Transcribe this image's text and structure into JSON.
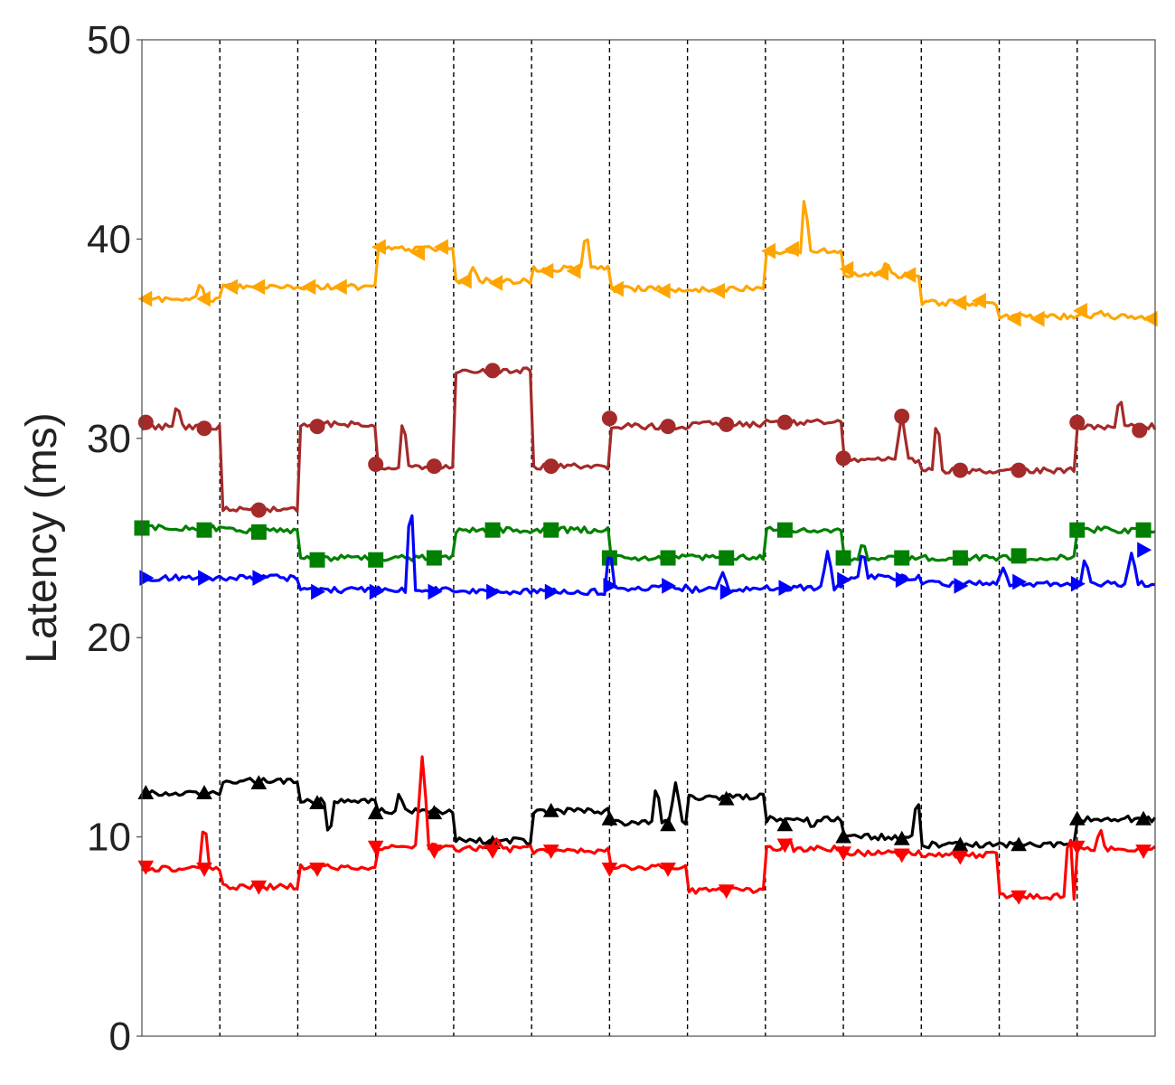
{
  "chart_data": {
    "type": "line",
    "title": "",
    "xlabel": "",
    "ylabel": "Latency (ms)",
    "ylim": [
      0,
      50
    ],
    "yticks": [
      "0",
      "10",
      "20",
      "30",
      "40",
      "50"
    ],
    "x_range": [
      0,
      13
    ],
    "segment_boundaries": [
      1,
      2,
      3,
      4,
      5,
      6,
      7,
      8,
      9,
      10,
      11,
      12
    ],
    "grid": false,
    "legend": "none",
    "series": [
      {
        "color": "#FFA500",
        "marker": "triangle-left",
        "levels": [
          37.0,
          37.6,
          37.6,
          39.5,
          37.9,
          38.5,
          37.5,
          37.5,
          39.4,
          38.2,
          36.8,
          36.1,
          36.1
        ],
        "spikes": [
          [
            0.75,
            37.8
          ],
          [
            4.25,
            38.6
          ],
          [
            5.7,
            40.4
          ],
          [
            8.5,
            42.1
          ],
          [
            9.55,
            38.9
          ],
          [
            12.3,
            36.4
          ]
        ],
        "markers": [
          [
            0.05,
            37.0
          ],
          [
            0.8,
            37.0
          ],
          [
            1.15,
            37.6
          ],
          [
            1.5,
            37.6
          ],
          [
            2.15,
            37.6
          ],
          [
            2.55,
            37.6
          ],
          [
            3.05,
            39.6
          ],
          [
            3.55,
            39.3
          ],
          [
            3.85,
            39.6
          ],
          [
            4.15,
            37.9
          ],
          [
            4.55,
            37.8
          ],
          [
            5.2,
            38.4
          ],
          [
            5.55,
            38.4
          ],
          [
            6.1,
            37.5
          ],
          [
            6.7,
            37.4
          ],
          [
            7.4,
            37.4
          ],
          [
            8.05,
            39.4
          ],
          [
            8.35,
            39.5
          ],
          [
            9.05,
            38.5
          ],
          [
            9.5,
            38.3
          ],
          [
            9.85,
            38.2
          ],
          [
            10.5,
            36.8
          ],
          [
            10.75,
            36.9
          ],
          [
            11.2,
            36.0
          ],
          [
            11.5,
            36.0
          ],
          [
            12.05,
            36.4
          ],
          [
            12.95,
            36.0
          ]
        ]
      },
      {
        "color": "#A52A2A",
        "marker": "circle",
        "levels": [
          30.6,
          26.4,
          30.7,
          28.6,
          33.4,
          28.6,
          30.6,
          30.7,
          30.8,
          28.9,
          28.4,
          28.4,
          30.6
        ],
        "spikes": [
          [
            0.45,
            31.7
          ],
          [
            3.35,
            31.0
          ],
          [
            9.75,
            31.2
          ],
          [
            10.2,
            31.0
          ],
          [
            12.55,
            32.1
          ]
        ],
        "markers": [
          [
            0.05,
            30.8
          ],
          [
            0.8,
            30.5
          ],
          [
            1.5,
            26.4
          ],
          [
            2.25,
            30.6
          ],
          [
            3.0,
            28.7
          ],
          [
            3.75,
            28.6
          ],
          [
            4.5,
            33.4
          ],
          [
            5.25,
            28.6
          ],
          [
            6.0,
            31.0
          ],
          [
            6.75,
            30.6
          ],
          [
            7.5,
            30.7
          ],
          [
            8.25,
            30.8
          ],
          [
            9.0,
            29.0
          ],
          [
            9.75,
            31.1
          ],
          [
            10.5,
            28.4
          ],
          [
            11.25,
            28.4
          ],
          [
            12.0,
            30.8
          ],
          [
            12.8,
            30.4
          ]
        ]
      },
      {
        "color": "#008000",
        "marker": "square",
        "levels": [
          25.5,
          25.4,
          24.0,
          24.0,
          25.4,
          25.4,
          24.0,
          24.0,
          25.4,
          24.0,
          24.0,
          24.0,
          25.4
        ],
        "spikes": [
          [
            9.25,
            24.8
          ]
        ],
        "markers": [
          [
            0.0,
            25.5
          ],
          [
            0.8,
            25.4
          ],
          [
            1.5,
            25.3
          ],
          [
            2.25,
            23.9
          ],
          [
            3.0,
            23.9
          ],
          [
            3.75,
            24.0
          ],
          [
            4.5,
            25.4
          ],
          [
            5.25,
            25.4
          ],
          [
            6.0,
            24.0
          ],
          [
            6.75,
            24.0
          ],
          [
            7.5,
            24.0
          ],
          [
            8.25,
            25.4
          ],
          [
            9.0,
            24.0
          ],
          [
            9.75,
            24.0
          ],
          [
            10.5,
            24.0
          ],
          [
            11.25,
            24.1
          ],
          [
            12.0,
            25.4
          ],
          [
            12.85,
            25.4
          ]
        ]
      },
      {
        "color": "#0000FF",
        "marker": "triangle-right",
        "levels": [
          23.0,
          23.0,
          22.4,
          22.4,
          22.3,
          22.3,
          22.5,
          22.4,
          22.5,
          23.0,
          22.7,
          22.7,
          22.7
        ],
        "spikes": [
          [
            3.45,
            27.0
          ],
          [
            6.0,
            24.5
          ],
          [
            7.45,
            23.3
          ],
          [
            8.8,
            24.4
          ],
          [
            9.25,
            24.4
          ],
          [
            11.05,
            23.5
          ],
          [
            12.1,
            24.0
          ],
          [
            12.7,
            24.3
          ]
        ],
        "markers": [
          [
            0.05,
            23.0
          ],
          [
            0.8,
            23.0
          ],
          [
            1.5,
            23.0
          ],
          [
            2.25,
            22.3
          ],
          [
            3.0,
            22.3
          ],
          [
            3.75,
            22.3
          ],
          [
            4.5,
            22.3
          ],
          [
            5.25,
            22.3
          ],
          [
            6.0,
            22.6
          ],
          [
            6.75,
            22.6
          ],
          [
            7.5,
            22.3
          ],
          [
            8.25,
            22.5
          ],
          [
            9.0,
            22.9
          ],
          [
            9.75,
            22.9
          ],
          [
            10.5,
            22.6
          ],
          [
            11.25,
            22.8
          ],
          [
            12.0,
            22.7
          ],
          [
            12.85,
            24.4
          ]
        ]
      },
      {
        "color": "#000000",
        "marker": "triangle-up",
        "levels": [
          12.2,
          12.8,
          11.8,
          11.3,
          9.8,
          11.3,
          10.7,
          12.0,
          10.9,
          10.0,
          9.6,
          9.6,
          10.9
        ],
        "spikes": [
          [
            2.4,
            10.0
          ],
          [
            3.3,
            12.2
          ],
          [
            6.6,
            12.6
          ],
          [
            6.85,
            12.8
          ],
          [
            7.95,
            12.2
          ],
          [
            9.95,
            12.0
          ],
          [
            8.6,
            10.4
          ]
        ],
        "markers": [
          [
            0.05,
            12.2
          ],
          [
            0.8,
            12.2
          ],
          [
            1.5,
            12.7
          ],
          [
            2.25,
            11.7
          ],
          [
            3.0,
            11.2
          ],
          [
            3.75,
            11.2
          ],
          [
            4.5,
            9.7
          ],
          [
            5.25,
            11.3
          ],
          [
            6.0,
            10.9
          ],
          [
            6.75,
            10.6
          ],
          [
            7.5,
            11.9
          ],
          [
            8.25,
            10.6
          ],
          [
            9.0,
            10.0
          ],
          [
            9.75,
            9.9
          ],
          [
            10.5,
            9.6
          ],
          [
            11.25,
            9.6
          ],
          [
            12.0,
            10.9
          ],
          [
            12.85,
            10.9
          ]
        ]
      },
      {
        "color": "#FF0000",
        "marker": "triangle-down",
        "levels": [
          8.4,
          7.5,
          8.5,
          9.5,
          9.4,
          9.3,
          8.5,
          7.3,
          9.4,
          9.2,
          9.1,
          7.0,
          9.4
        ],
        "spikes": [
          [
            0.8,
            10.8
          ],
          [
            3.6,
            14.2
          ],
          [
            4.55,
            9.9
          ],
          [
            8.3,
            10.0
          ],
          [
            11.9,
            10.5
          ],
          [
            12.3,
            10.4
          ]
        ],
        "markers": [
          [
            0.05,
            8.5
          ],
          [
            0.8,
            8.4
          ],
          [
            1.5,
            7.5
          ],
          [
            2.25,
            8.4
          ],
          [
            3.0,
            9.5
          ],
          [
            3.75,
            9.3
          ],
          [
            4.5,
            9.3
          ],
          [
            5.25,
            9.3
          ],
          [
            6.0,
            8.4
          ],
          [
            6.75,
            8.4
          ],
          [
            7.5,
            7.3
          ],
          [
            8.25,
            9.6
          ],
          [
            9.0,
            9.2
          ],
          [
            9.75,
            9.1
          ],
          [
            10.5,
            9.0
          ],
          [
            11.25,
            7.0
          ],
          [
            12.0,
            9.5
          ],
          [
            12.85,
            9.3
          ]
        ]
      }
    ]
  }
}
